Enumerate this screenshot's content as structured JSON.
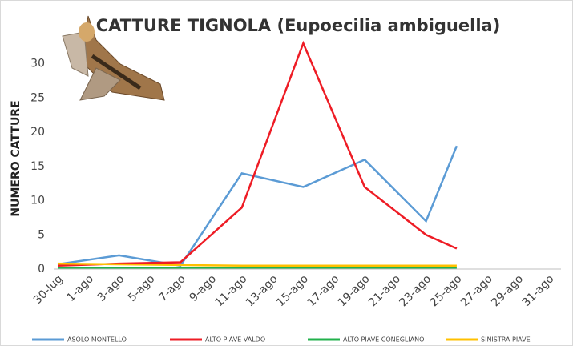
{
  "chart_data": {
    "type": "line",
    "title": "CATTURE TIGNOLA (Eupoecilia ambiguella)",
    "y_label": "NUMERO CATTURE",
    "xticks": [
      "30-lug",
      "1-ago",
      "3-ago",
      "5-ago",
      "7-ago",
      "9-ago",
      "11-ago",
      "13-ago",
      "15-ago",
      "17-ago",
      "19-ago",
      "21-ago",
      "23-ago",
      "25-ago",
      "27-ago",
      "29-ago",
      "31-ago"
    ],
    "x": [
      "30-lug",
      "3-ago",
      "7-ago",
      "11-ago",
      "15-ago",
      "19-ago",
      "23-ago",
      "25-ago"
    ],
    "series": [
      {
        "name": "ASOLO MONTELLO",
        "color": "#5b9bd5",
        "values": [
          0.7,
          2,
          0.5,
          14,
          12,
          16,
          7,
          18
        ]
      },
      {
        "name": "ALTO PIAVE VALDO",
        "color": "#ee1c25",
        "values": [
          0.5,
          0.8,
          1,
          9,
          33,
          12,
          5,
          3
        ]
      },
      {
        "name": "ALTO PIAVE CONEGLIANO",
        "color": "#22b14c",
        "values": [
          0.2,
          0.2,
          0.2,
          0.2,
          0.2,
          0.2,
          0.2,
          0.2
        ]
      },
      {
        "name": "SINISTRA PIAVE",
        "color": "#ffc000",
        "values": [
          0.8,
          0.7,
          0.6,
          0.5,
          0.5,
          0.5,
          0.5,
          0.5
        ]
      }
    ],
    "ylim": [
      0,
      35
    ],
    "yticks": [
      0,
      5,
      10,
      15,
      20,
      25,
      30
    ],
    "grid": false
  }
}
